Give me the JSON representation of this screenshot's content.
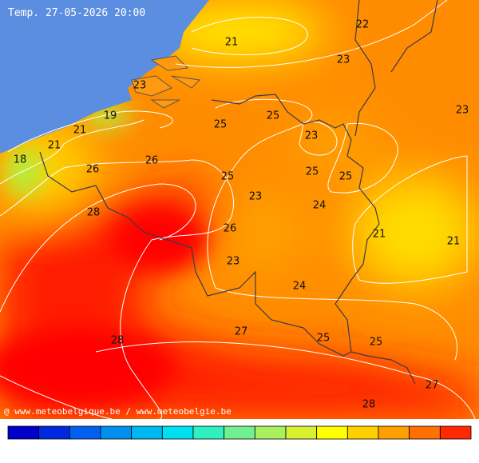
{
  "title": "Temp. 27-05-2026 20:00",
  "credit": "@ www.meteobelgique.be / www.meteobelgie.be",
  "contour_labels": [
    21,
    22,
    23,
    23,
    23,
    19,
    25,
    21,
    25,
    23,
    21,
    18,
    26,
    26,
    25,
    25,
    25,
    23,
    24,
    28,
    26,
    21,
    21,
    23,
    24,
    27,
    28,
    25,
    25,
    27,
    28
  ]
}
